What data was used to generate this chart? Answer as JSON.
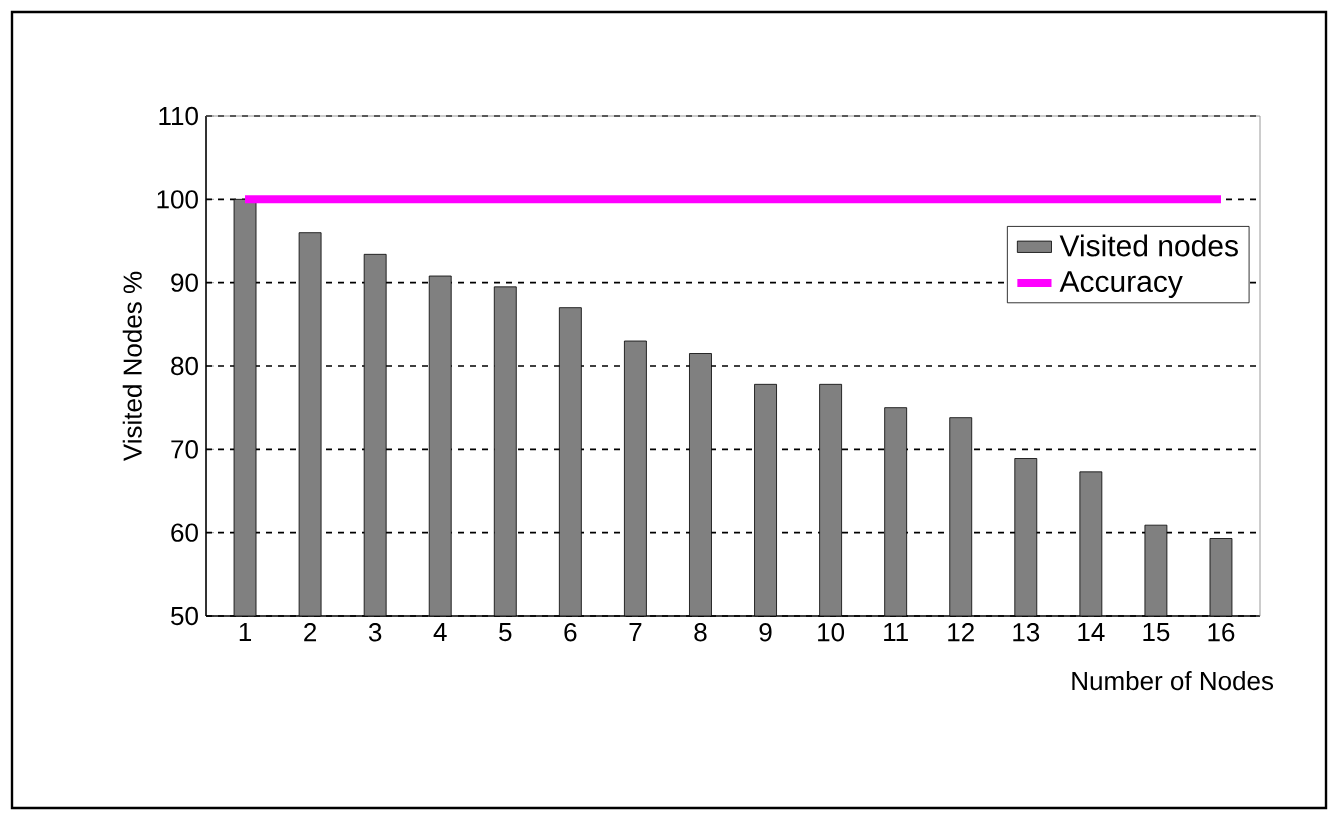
{
  "chart_data": {
    "type": "bar",
    "xlabel": "Number of Nodes",
    "ylabel": "Visited Nodes %",
    "categories": [
      "1",
      "2",
      "3",
      "4",
      "5",
      "6",
      "7",
      "8",
      "9",
      "10",
      "11",
      "12",
      "13",
      "14",
      "15",
      "16"
    ],
    "series": [
      {
        "name": "Visited nodes",
        "color": "#808080",
        "values": [
          100,
          96,
          93.4,
          90.8,
          89.5,
          87,
          83,
          81.5,
          77.8,
          77.8,
          75,
          73.8,
          68.9,
          67.3,
          60.9,
          59.3
        ]
      },
      {
        "name": "Accuracy",
        "type": "line",
        "color": "#ff00ff",
        "values": [
          100,
          100,
          100,
          100,
          100,
          100,
          100,
          100,
          100,
          100,
          100,
          100,
          100,
          100,
          100,
          100
        ]
      }
    ],
    "ylim": [
      50,
      110
    ],
    "yticks": [
      50,
      60,
      70,
      80,
      90,
      100,
      110
    ],
    "grid": "y",
    "legend": "right"
  }
}
